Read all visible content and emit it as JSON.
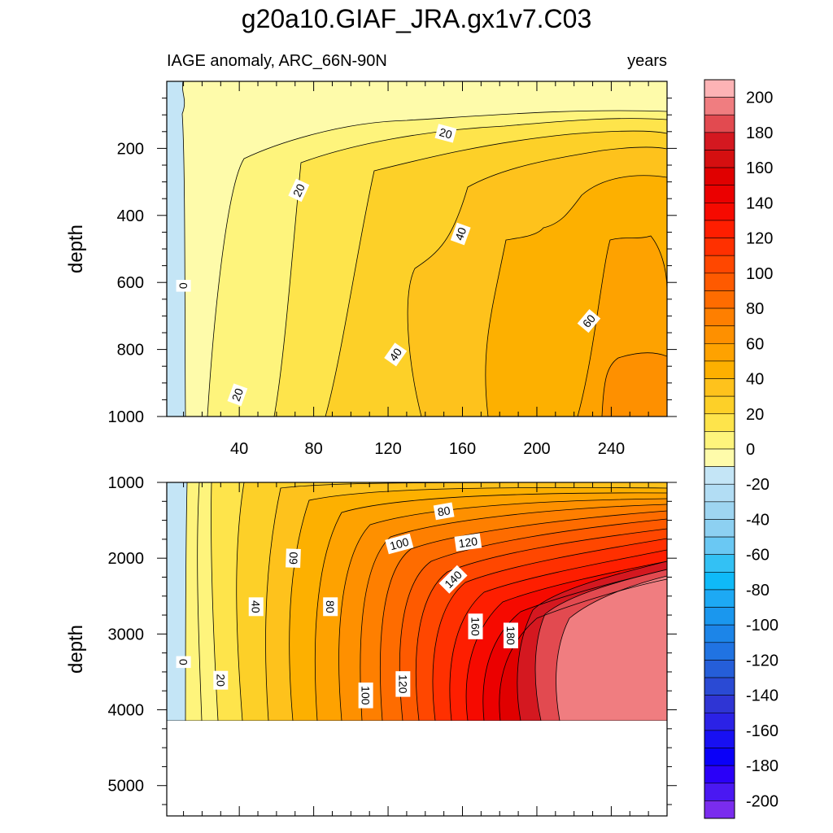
{
  "chart_data": {
    "type": "contour",
    "title": "g20a10.GIAF_JRA.gx1v7.C03",
    "left_string": "IAGE anomaly, ARC_66N-90N",
    "right_string": "years",
    "ylabel": "depth",
    "x_range": [
      1,
      270
    ],
    "x_ticks": [
      40,
      80,
      120,
      160,
      200,
      240
    ],
    "upper_panel": {
      "ylim": [
        0,
        1000
      ],
      "y_ticks": [
        200,
        400,
        600,
        800,
        1000
      ],
      "contour_labels": [
        {
          "text": "20",
          "x": 151,
          "depth": 155,
          "rot": 15
        },
        {
          "text": "20",
          "x": 72,
          "depth": 325,
          "rot": -65
        },
        {
          "text": "40",
          "x": 159,
          "depth": 455,
          "rot": -70
        },
        {
          "text": "0",
          "x": 10,
          "depth": 610,
          "rot": 90
        },
        {
          "text": "60",
          "x": 228,
          "depth": 715,
          "rot": -50
        },
        {
          "text": "40",
          "x": 124,
          "depth": 815,
          "rot": -55
        },
        {
          "text": "20",
          "x": 39,
          "depth": 935,
          "rot": -70
        }
      ]
    },
    "lower_panel": {
      "ylim": [
        1000,
        5400
      ],
      "y_ticks": [
        1000,
        2000,
        3000,
        4000,
        5000
      ],
      "bottom_depth": 4120,
      "contour_labels": [
        {
          "text": "80",
          "x": 150,
          "depth": 1380,
          "rot": -10
        },
        {
          "text": "100",
          "x": 126,
          "depth": 1810,
          "rot": -15
        },
        {
          "text": "120",
          "x": 163,
          "depth": 1790,
          "rot": -8
        },
        {
          "text": "60",
          "x": 69,
          "depth": 2000,
          "rot": -88
        },
        {
          "text": "140",
          "x": 155,
          "depth": 2280,
          "rot": -45
        },
        {
          "text": "40",
          "x": 49,
          "depth": 2640,
          "rot": 90
        },
        {
          "text": "80",
          "x": 89,
          "depth": 2640,
          "rot": 90
        },
        {
          "text": "160",
          "x": 167,
          "depth": 2900,
          "rot": 90
        },
        {
          "text": "180",
          "x": 186,
          "depth": 3020,
          "rot": 90
        },
        {
          "text": "0",
          "x": 10,
          "depth": 3370,
          "rot": 90
        },
        {
          "text": "20",
          "x": 30,
          "depth": 3610,
          "rot": 90
        },
        {
          "text": "120",
          "x": 128,
          "depth": 3660,
          "rot": 90
        },
        {
          "text": "100",
          "x": 108,
          "depth": 3810,
          "rot": 90
        }
      ]
    },
    "colorbar": {
      "labels": [
        "200",
        "180",
        "160",
        "140",
        "120",
        "100",
        "80",
        "60",
        "40",
        "20",
        "0",
        "-20",
        "-40",
        "-60",
        "-80",
        "-100",
        "-120",
        "-140",
        "-160",
        "-180",
        "-200"
      ],
      "levels_top_to_bottom": [
        210,
        200,
        190,
        180,
        170,
        160,
        150,
        140,
        130,
        120,
        110,
        100,
        90,
        80,
        70,
        60,
        50,
        40,
        30,
        20,
        10,
        0,
        -10,
        -20,
        -30,
        -40,
        -50,
        -60,
        -70,
        -80,
        -90,
        -100,
        -110,
        -120,
        -130,
        -140,
        -150,
        -160,
        -170,
        -180,
        -190,
        -200,
        -210
      ],
      "colors_top_to_bottom": [
        "#fdb3b5",
        "#f07d80",
        "#e24a50",
        "#d41820",
        "#d50f10",
        "#e00000",
        "#eb0000",
        "#f60a00",
        "#fe1e00",
        "#ff3000",
        "#ff4700",
        "#fe5a00",
        "#fe6c00",
        "#fe7f00",
        "#fe9000",
        "#fea200",
        "#fdb000",
        "#fec21c",
        "#fdd028",
        "#fee44b",
        "#fef47c",
        "#fefbaa",
        "#c4e5f6",
        "#b2ddf4",
        "#9ed5f1",
        "#8dd0f1",
        "#6ac8f3",
        "#33c1f4",
        "#0fbaf8",
        "#1da9f4",
        "#1a97ee",
        "#1c85e8",
        "#2073e2",
        "#255ed9",
        "#2a4ad4",
        "#2f35d4",
        "#2b22e6",
        "#1810f2",
        "#0a00f8",
        "#2a00f8",
        "#4a18f2",
        "#7a2cee"
      ]
    }
  }
}
